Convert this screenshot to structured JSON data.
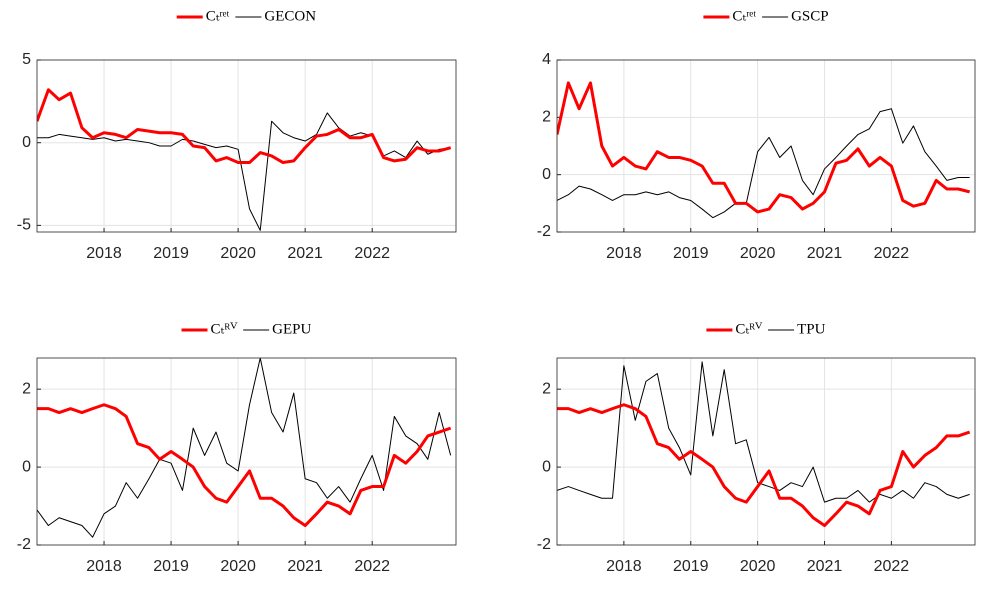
{
  "chart_data": [
    {
      "type": "line",
      "xlim": [
        2017.0,
        2023.25
      ],
      "xticks": [
        2018,
        2019,
        2020,
        2021,
        2022
      ],
      "ylim": [
        -5.4,
        5
      ],
      "yticks": [
        -5,
        0,
        5
      ],
      "grid": true,
      "x": [
        2017.0,
        2017.17,
        2017.33,
        2017.5,
        2017.67,
        2017.83,
        2018.0,
        2018.17,
        2018.33,
        2018.5,
        2018.67,
        2018.83,
        2019.0,
        2019.17,
        2019.33,
        2019.5,
        2019.67,
        2019.83,
        2020.0,
        2020.17,
        2020.33,
        2020.5,
        2020.67,
        2020.83,
        2021.0,
        2021.17,
        2021.33,
        2021.5,
        2021.67,
        2021.83,
        2022.0,
        2022.17,
        2022.33,
        2022.5,
        2022.67,
        2022.83,
        2023.0,
        2023.17
      ],
      "series": [
        {
          "name": "Cₜʳᵉᵗ",
          "color": "#ff0000",
          "values": [
            1.3,
            3.2,
            2.6,
            3.0,
            0.9,
            0.3,
            0.6,
            0.5,
            0.3,
            0.8,
            0.7,
            0.6,
            0.6,
            0.5,
            -0.2,
            -0.3,
            -1.1,
            -0.9,
            -1.2,
            -1.2,
            -0.6,
            -0.8,
            -1.2,
            -1.1,
            -0.3,
            0.4,
            0.5,
            0.8,
            0.3,
            0.3,
            0.5,
            -0.9,
            -1.1,
            -1.0,
            -0.3,
            -0.5,
            -0.5,
            -0.3
          ]
        },
        {
          "name": "GECON",
          "color": "#000000",
          "values": [
            0.3,
            0.3,
            0.5,
            0.4,
            0.3,
            0.2,
            0.3,
            0.1,
            0.2,
            0.1,
            0.0,
            -0.2,
            -0.2,
            0.2,
            0.1,
            -0.1,
            -0.3,
            -0.2,
            -0.4,
            -4.0,
            -5.3,
            1.3,
            0.6,
            0.3,
            0.1,
            0.5,
            1.8,
            0.9,
            0.4,
            0.6,
            0.4,
            -0.8,
            -0.5,
            -0.9,
            0.1,
            -0.7,
            -0.4,
            -0.3
          ]
        }
      ]
    },
    {
      "type": "line",
      "xlim": [
        2017.0,
        2023.25
      ],
      "xticks": [
        2018,
        2019,
        2020,
        2021,
        2022
      ],
      "ylim": [
        -2,
        4
      ],
      "yticks": [
        -2,
        0,
        2,
        4
      ],
      "grid": true,
      "x": [
        2017.0,
        2017.17,
        2017.33,
        2017.5,
        2017.67,
        2017.83,
        2018.0,
        2018.17,
        2018.33,
        2018.5,
        2018.67,
        2018.83,
        2019.0,
        2019.17,
        2019.33,
        2019.5,
        2019.67,
        2019.83,
        2020.0,
        2020.17,
        2020.33,
        2020.5,
        2020.67,
        2020.83,
        2021.0,
        2021.17,
        2021.33,
        2021.5,
        2021.67,
        2021.83,
        2022.0,
        2022.17,
        2022.33,
        2022.5,
        2022.67,
        2022.83,
        2023.0,
        2023.17
      ],
      "series": [
        {
          "name": "Cₜʳᵉᵗ",
          "color": "#ff0000",
          "values": [
            1.4,
            3.2,
            2.3,
            3.2,
            1.0,
            0.3,
            0.6,
            0.3,
            0.2,
            0.8,
            0.6,
            0.6,
            0.5,
            0.3,
            -0.3,
            -0.3,
            -1.0,
            -1.0,
            -1.3,
            -1.2,
            -0.7,
            -0.8,
            -1.2,
            -1.0,
            -0.6,
            0.4,
            0.5,
            0.9,
            0.3,
            0.6,
            0.3,
            -0.9,
            -1.1,
            -1.0,
            -0.2,
            -0.5,
            -0.5,
            -0.6
          ]
        },
        {
          "name": "GSCP",
          "color": "#000000",
          "values": [
            -0.9,
            -0.7,
            -0.4,
            -0.5,
            -0.7,
            -0.9,
            -0.7,
            -0.7,
            -0.6,
            -0.7,
            -0.6,
            -0.8,
            -0.9,
            -1.2,
            -1.5,
            -1.3,
            -1.0,
            -1.0,
            0.8,
            1.3,
            0.6,
            1.0,
            -0.2,
            -0.7,
            0.2,
            0.6,
            1.0,
            1.4,
            1.6,
            2.2,
            2.3,
            1.1,
            1.7,
            0.8,
            0.3,
            -0.2,
            -0.1,
            -0.1
          ]
        }
      ]
    },
    {
      "type": "line",
      "xlim": [
        2017.0,
        2023.25
      ],
      "xticks": [
        2018,
        2019,
        2020,
        2021,
        2022
      ],
      "ylim": [
        -2,
        2.8
      ],
      "yticks": [
        -2,
        0,
        2
      ],
      "grid": true,
      "x": [
        2017.0,
        2017.17,
        2017.33,
        2017.5,
        2017.67,
        2017.83,
        2018.0,
        2018.17,
        2018.33,
        2018.5,
        2018.67,
        2018.83,
        2019.0,
        2019.17,
        2019.33,
        2019.5,
        2019.67,
        2019.83,
        2020.0,
        2020.17,
        2020.33,
        2020.5,
        2020.67,
        2020.83,
        2021.0,
        2021.17,
        2021.33,
        2021.5,
        2021.67,
        2021.83,
        2022.0,
        2022.17,
        2022.33,
        2022.5,
        2022.67,
        2022.83,
        2023.0,
        2023.17
      ],
      "series": [
        {
          "name": "Cₜᴿⱽ",
          "color": "#ff0000",
          "values": [
            1.5,
            1.5,
            1.4,
            1.5,
            1.4,
            1.5,
            1.6,
            1.5,
            1.3,
            0.6,
            0.5,
            0.2,
            0.4,
            0.2,
            0.0,
            -0.5,
            -0.8,
            -0.9,
            -0.5,
            -0.1,
            -0.8,
            -0.8,
            -1.0,
            -1.3,
            -1.5,
            -1.2,
            -0.9,
            -1.0,
            -1.2,
            -0.6,
            -0.5,
            -0.5,
            0.3,
            0.1,
            0.4,
            0.8,
            0.9,
            1.0
          ]
        },
        {
          "name": "GEPU",
          "color": "#000000",
          "values": [
            -1.1,
            -1.5,
            -1.3,
            -1.4,
            -1.5,
            -1.8,
            -1.2,
            -1.0,
            -0.4,
            -0.8,
            -0.3,
            0.2,
            0.1,
            -0.6,
            1.0,
            0.3,
            0.9,
            0.1,
            -0.1,
            1.6,
            2.8,
            1.4,
            0.9,
            1.9,
            -0.3,
            -0.4,
            -0.8,
            -0.5,
            -0.9,
            -0.3,
            0.3,
            -0.6,
            1.3,
            0.8,
            0.6,
            0.2,
            1.4,
            0.3
          ]
        }
      ]
    },
    {
      "type": "line",
      "xlim": [
        2017.0,
        2023.25
      ],
      "xticks": [
        2018,
        2019,
        2020,
        2021,
        2022
      ],
      "ylim": [
        -2,
        2.8
      ],
      "yticks": [
        -2,
        0,
        2
      ],
      "grid": true,
      "x": [
        2017.0,
        2017.17,
        2017.33,
        2017.5,
        2017.67,
        2017.83,
        2018.0,
        2018.17,
        2018.33,
        2018.5,
        2018.67,
        2018.83,
        2019.0,
        2019.17,
        2019.33,
        2019.5,
        2019.67,
        2019.83,
        2020.0,
        2020.17,
        2020.33,
        2020.5,
        2020.67,
        2020.83,
        2021.0,
        2021.17,
        2021.33,
        2021.5,
        2021.67,
        2021.83,
        2022.0,
        2022.17,
        2022.33,
        2022.5,
        2022.67,
        2022.83,
        2023.0,
        2023.17
      ],
      "series": [
        {
          "name": "Cₜᴿⱽ",
          "color": "#ff0000",
          "values": [
            1.5,
            1.5,
            1.4,
            1.5,
            1.4,
            1.5,
            1.6,
            1.5,
            1.3,
            0.6,
            0.5,
            0.2,
            0.4,
            0.2,
            0.0,
            -0.5,
            -0.8,
            -0.9,
            -0.5,
            -0.1,
            -0.8,
            -0.8,
            -1.0,
            -1.3,
            -1.5,
            -1.2,
            -0.9,
            -1.0,
            -1.2,
            -0.6,
            -0.5,
            0.4,
            0.0,
            0.3,
            0.5,
            0.8,
            0.8,
            0.9
          ]
        },
        {
          "name": "TPU",
          "color": "#000000",
          "values": [
            -0.6,
            -0.5,
            -0.6,
            -0.7,
            -0.8,
            -0.8,
            2.6,
            1.2,
            2.2,
            2.4,
            1.0,
            0.5,
            -0.2,
            2.7,
            0.8,
            2.5,
            0.6,
            0.7,
            -0.4,
            -0.5,
            -0.6,
            -0.4,
            -0.5,
            0.0,
            -0.9,
            -0.8,
            -0.8,
            -0.6,
            -0.9,
            -0.7,
            -0.8,
            -0.6,
            -0.8,
            -0.4,
            -0.5,
            -0.7,
            -0.8,
            -0.7
          ]
        }
      ]
    }
  ]
}
